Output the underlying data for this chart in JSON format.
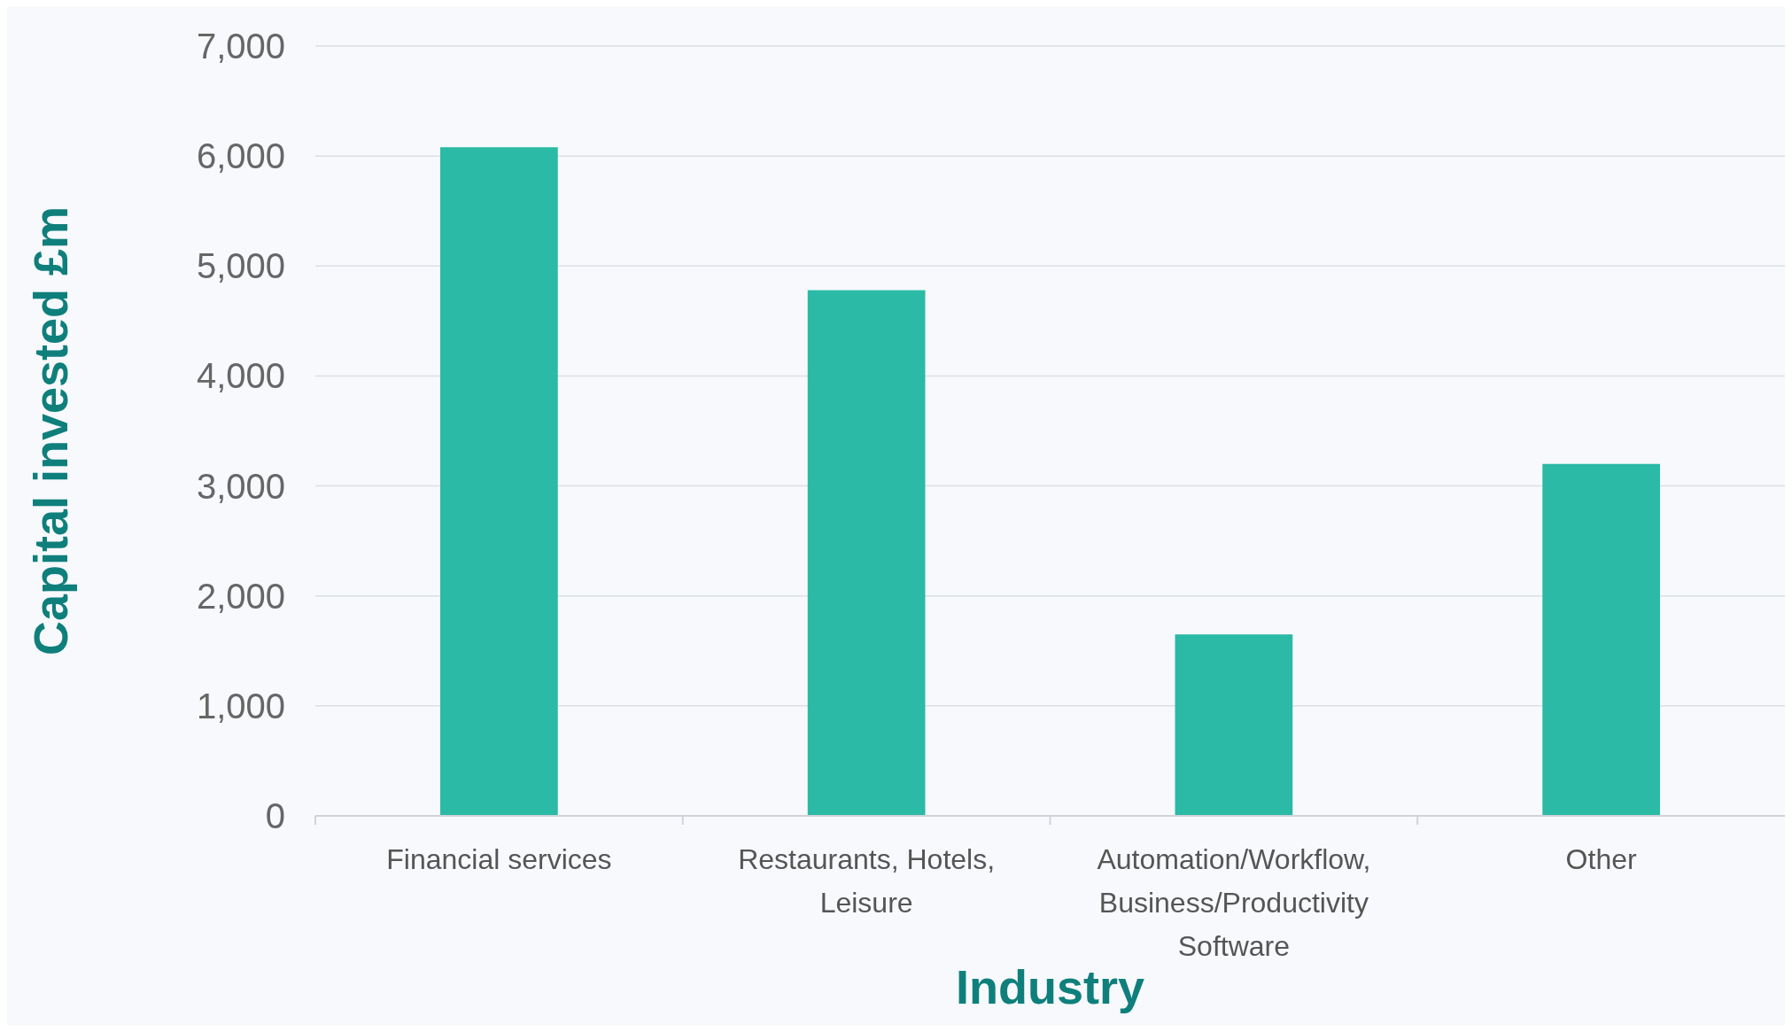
{
  "chart_data": {
    "type": "bar",
    "xlabel": "Industry",
    "ylabel": "Capital invested £m",
    "categories": [
      "Financial services",
      "Restaurants, Hotels, Leisure",
      "Automation/Workflow, Business/Productivity Software",
      "Other"
    ],
    "values": [
      6080,
      4780,
      1650,
      3200
    ],
    "color": "#2abaa6",
    "ylim": [
      0,
      7000
    ],
    "yticks": [
      {
        "value": 0,
        "label": "0"
      },
      {
        "value": 1000,
        "label": "1,000"
      },
      {
        "value": 2000,
        "label": "2,000"
      },
      {
        "value": 3000,
        "label": "3,000"
      },
      {
        "value": 4000,
        "label": "4,000"
      },
      {
        "value": 5000,
        "label": "5,000"
      },
      {
        "value": 6000,
        "label": "6,000"
      },
      {
        "value": 7000,
        "label": "7,000"
      }
    ],
    "grid": "y"
  }
}
